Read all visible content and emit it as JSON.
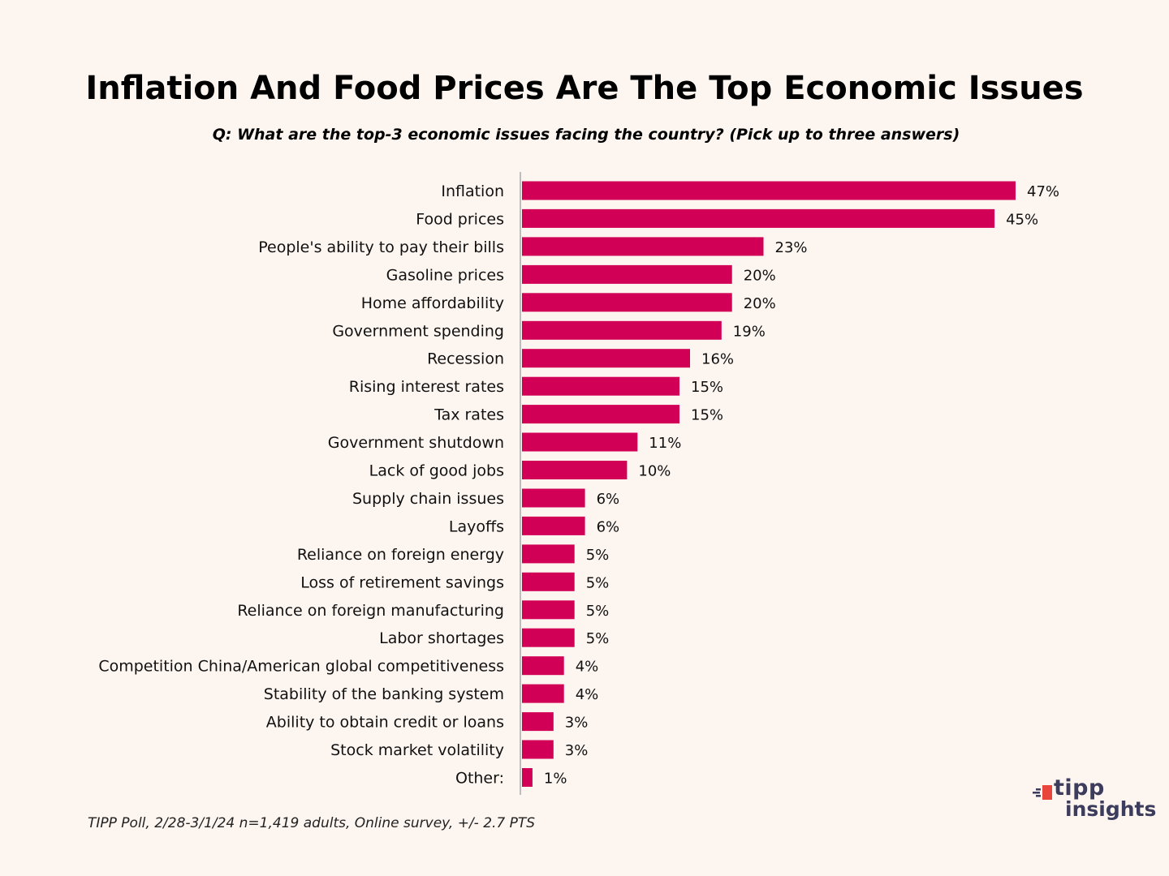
{
  "title": "Inflation And Food Prices Are The Top Economic Issues",
  "subtitle": "Q: What are the top-3 economic issues facing the country? (Pick up to three answers)",
  "footnote": "TIPP Poll, 2/28-3/1/24 n=1,419 adults, Online survey, +/- 2.7 PTS",
  "logo": {
    "line1": "tipp",
    "line2": "insights"
  },
  "colors": {
    "bar": "#d10056",
    "background": "#fdf5f0",
    "logo_text": "#3c3c5c",
    "logo_accent": "#e8463c"
  },
  "chart_data": {
    "type": "bar",
    "orientation": "horizontal",
    "title": "Inflation And Food Prices Are The Top Economic Issues",
    "xlabel": "",
    "ylabel": "",
    "xlim": [
      0,
      47
    ],
    "value_suffix": "%",
    "categories": [
      "Inflation",
      "Food prices",
      "People's ability to pay their bills",
      "Gasoline prices",
      "Home affordability",
      "Government spending",
      "Recession",
      "Rising interest rates",
      "Tax rates",
      "Government shutdown",
      "Lack of good jobs",
      "Supply chain issues",
      "Layoffs",
      "Reliance on foreign energy",
      "Loss of retirement savings",
      "Reliance on foreign manufacturing",
      "Labor shortages",
      "Competition China/American global competitiveness",
      "Stability of the banking system",
      "Ability to obtain credit or loans",
      "Stock market volatility",
      "Other:"
    ],
    "values": [
      47,
      45,
      23,
      20,
      20,
      19,
      16,
      15,
      15,
      11,
      10,
      6,
      6,
      5,
      5,
      5,
      5,
      4,
      4,
      3,
      3,
      1
    ],
    "value_labels": [
      "47%",
      "45%",
      "23%",
      "20%",
      "20%",
      "19%",
      "16%",
      "15%",
      "15%",
      "11%",
      "10%",
      "6%",
      "6%",
      "5%",
      "5%",
      "5%",
      "5%",
      "4%",
      "4%",
      "3%",
      "3%",
      "1%"
    ]
  }
}
